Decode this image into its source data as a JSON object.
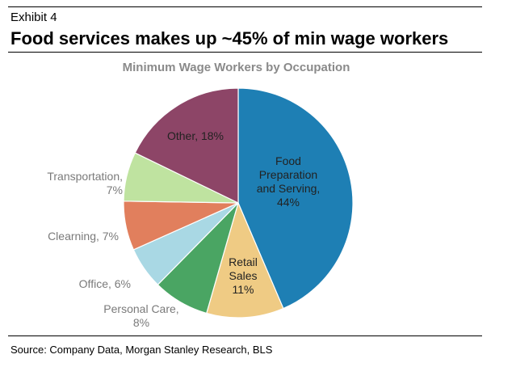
{
  "header": {
    "exhibit_label": "Exhibit 4",
    "headline": "Food services makes up ~45% of min wage workers"
  },
  "footer": {
    "source": "Source: Company Data, Morgan Stanley Research, BLS"
  },
  "chart_data": {
    "type": "pie",
    "title": "Minimum Wage Workers by Occupation",
    "slices": [
      {
        "label": [
          "Food",
          "Preparation",
          "and Serving,",
          "44%"
        ],
        "category": "Food Preparation and Serving",
        "value": 44,
        "color": "#1e7fb4",
        "label_color": "#222222"
      },
      {
        "label": [
          "Retail",
          "Sales",
          "11%"
        ],
        "category": "Retail Sales",
        "value": 11,
        "color": "#efcb84",
        "label_color": "#222222"
      },
      {
        "label": [
          "Personal Care,",
          "8%"
        ],
        "category": "Personal Care",
        "value": 8,
        "color": "#4aa563",
        "label_color": "#7a7a7a"
      },
      {
        "label": [
          "Office, 6%"
        ],
        "category": "Office",
        "value": 6,
        "color": "#a9d8e4",
        "label_color": "#7a7a7a"
      },
      {
        "label": [
          "Clearning, 7%"
        ],
        "category": "Clearning",
        "value": 7,
        "color": "#e17f5d",
        "label_color": "#7a7a7a"
      },
      {
        "label": [
          "Transportation,",
          "7%"
        ],
        "category": "Transportation",
        "value": 7,
        "color": "#bfe3a0",
        "label_color": "#7a7a7a"
      },
      {
        "label": [
          "Other, 18%"
        ],
        "category": "Other",
        "value": 18,
        "color": "#8d4567",
        "label_color": "#222222"
      }
    ]
  }
}
